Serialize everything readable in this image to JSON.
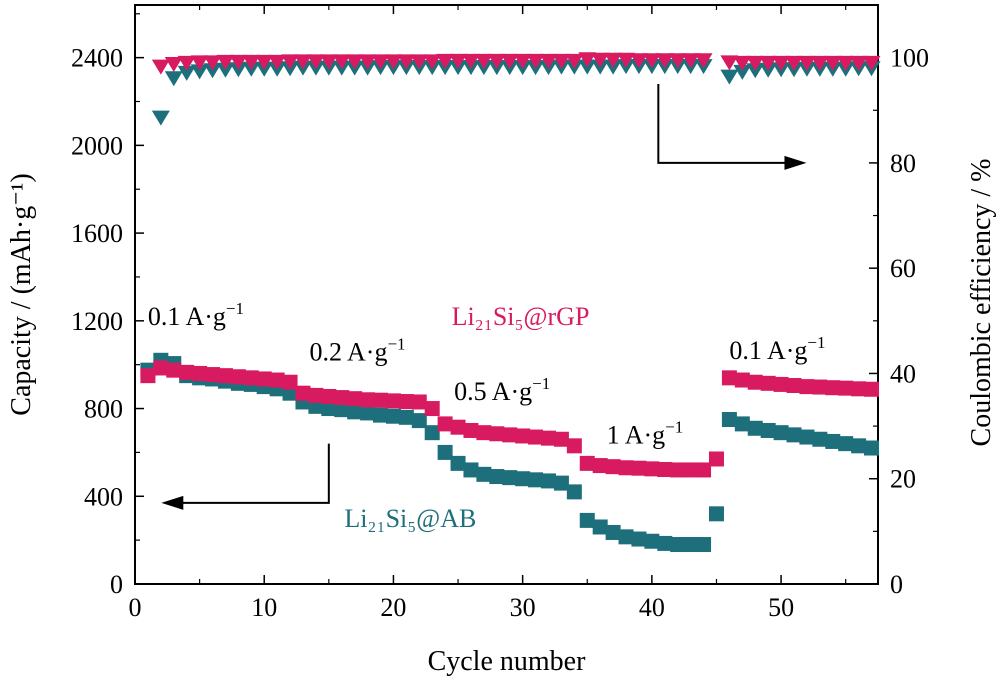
{
  "chart_data": {
    "type": "scatter",
    "xlabel": "Cycle number",
    "ylabel_left": "Capacity / (mAh·g⁻¹)",
    "ylabel_right": "Coulombic efficiency / %",
    "xlim": [
      0,
      57.5
    ],
    "ylim_left": [
      0,
      2640
    ],
    "ylim_right": [
      0,
      110
    ],
    "xticks": [
      0,
      10,
      20,
      30,
      40,
      50
    ],
    "yticks_left": [
      0,
      400,
      800,
      1200,
      1600,
      2000,
      2400
    ],
    "yticks_right": [
      0,
      20,
      40,
      60,
      80,
      100
    ],
    "annotations": [
      {
        "text": "0.1 A·g",
        "sup": "−1",
        "x": 1,
        "y": 1180
      },
      {
        "text": "0.2 A·g",
        "sup": "−1",
        "x": 13.5,
        "y": 1020
      },
      {
        "text": "0.5 A·g",
        "sup": "−1",
        "x": 24.7,
        "y": 840
      },
      {
        "text": "1 A·g",
        "sup": "−1",
        "x": 36.5,
        "y": 640
      },
      {
        "text": "0.1 A·g",
        "sup": "−1",
        "x": 46,
        "y": 1025
      }
    ],
    "series_labels": [
      {
        "text": "Li₂₁Si₅@rGP",
        "color": "#d81b60",
        "x": 24.5,
        "y": 1180
      },
      {
        "text": "Li₂₁Si₅@AB",
        "color": "#1e6f7c",
        "x": 16.2,
        "y": 260
      }
    ],
    "series": [
      {
        "name": "Li21Si5@rGP",
        "axis": "left",
        "marker": "square",
        "color": "#d81b60",
        "x": [
          1,
          2,
          3,
          4,
          5,
          6,
          7,
          8,
          9,
          10,
          11,
          12,
          13,
          14,
          15,
          16,
          17,
          18,
          19,
          20,
          21,
          22,
          23,
          24,
          25,
          26,
          27,
          28,
          29,
          30,
          31,
          32,
          33,
          34,
          35,
          36,
          37,
          38,
          39,
          40,
          41,
          42,
          43,
          44,
          45,
          46,
          47,
          48,
          49,
          50,
          51,
          52,
          53,
          54,
          55,
          56,
          57
        ],
        "y": [
          950,
          985,
          975,
          965,
          960,
          955,
          950,
          945,
          940,
          935,
          930,
          920,
          870,
          860,
          855,
          850,
          845,
          840,
          838,
          835,
          832,
          830,
          800,
          730,
          715,
          700,
          690,
          685,
          680,
          675,
          670,
          665,
          660,
          630,
          550,
          540,
          535,
          530,
          528,
          525,
          522,
          520,
          520,
          520,
          570,
          940,
          930,
          920,
          915,
          910,
          905,
          900,
          898,
          895,
          893,
          890,
          888
        ]
      },
      {
        "name": "Li21Si5@AB",
        "axis": "left",
        "marker": "square",
        "color": "#1e6f7c",
        "x": [
          1,
          2,
          3,
          4,
          5,
          6,
          7,
          8,
          9,
          10,
          11,
          12,
          13,
          14,
          15,
          16,
          17,
          18,
          19,
          20,
          21,
          22,
          23,
          24,
          25,
          26,
          27,
          28,
          29,
          30,
          31,
          32,
          33,
          34,
          35,
          36,
          37,
          38,
          39,
          40,
          41,
          42,
          43,
          44,
          45,
          46,
          47,
          48,
          49,
          50,
          51,
          52,
          53,
          54,
          55,
          56,
          57
        ],
        "y": [
          975,
          1020,
          1005,
          950,
          940,
          935,
          925,
          915,
          910,
          900,
          890,
          870,
          830,
          810,
          800,
          795,
          785,
          780,
          770,
          765,
          760,
          745,
          690,
          600,
          550,
          520,
          500,
          490,
          485,
          480,
          475,
          470,
          460,
          420,
          290,
          260,
          235,
          215,
          205,
          195,
          185,
          180,
          180,
          180,
          320,
          750,
          730,
          710,
          700,
          690,
          680,
          670,
          660,
          650,
          640,
          630,
          620
        ]
      },
      {
        "name": "Li21Si5@rGP CE",
        "axis": "right",
        "marker": "triangle-down",
        "color": "#d81b60",
        "x": [
          2,
          3,
          4,
          5,
          6,
          7,
          8,
          9,
          10,
          11,
          12,
          13,
          14,
          15,
          16,
          17,
          18,
          19,
          20,
          21,
          22,
          23,
          24,
          25,
          26,
          27,
          28,
          29,
          30,
          31,
          32,
          33,
          34,
          35,
          36,
          37,
          38,
          39,
          40,
          41,
          42,
          43,
          44,
          46,
          47,
          48,
          49,
          50,
          51,
          52,
          53,
          54,
          55,
          56,
          57
        ],
        "y": [
          98.2,
          98.7,
          98.9,
          99.0,
          99.0,
          99.1,
          99.1,
          99.1,
          99.1,
          99.1,
          99.2,
          99.2,
          99.2,
          99.2,
          99.2,
          99.2,
          99.2,
          99.2,
          99.2,
          99.2,
          99.2,
          99.2,
          99.3,
          99.3,
          99.3,
          99.3,
          99.3,
          99.3,
          99.3,
          99.3,
          99.3,
          99.3,
          99.3,
          99.6,
          99.5,
          99.5,
          99.5,
          99.4,
          99.4,
          99.4,
          99.4,
          99.4,
          99.4,
          99.0,
          98.9,
          98.9,
          98.9,
          98.9,
          98.9,
          98.9,
          98.9,
          98.9,
          98.9,
          98.9,
          98.9
        ]
      },
      {
        "name": "Li21Si5@AB CE",
        "axis": "right",
        "marker": "triangle-down",
        "color": "#1e6f7c",
        "x": [
          2,
          3,
          4,
          5,
          6,
          7,
          8,
          9,
          10,
          11,
          12,
          13,
          14,
          15,
          16,
          17,
          18,
          19,
          20,
          21,
          22,
          23,
          24,
          25,
          26,
          27,
          28,
          29,
          30,
          31,
          32,
          33,
          34,
          35,
          36,
          37,
          38,
          39,
          40,
          41,
          42,
          43,
          44,
          46,
          47,
          48,
          49,
          50,
          51,
          52,
          53,
          54,
          55,
          56,
          57
        ],
        "y": [
          88.5,
          96.0,
          97.0,
          97.3,
          97.5,
          97.6,
          97.7,
          97.8,
          97.8,
          97.8,
          97.9,
          98.0,
          98.0,
          98.0,
          98.0,
          98.0,
          98.0,
          98.1,
          98.1,
          98.1,
          98.1,
          98.1,
          98.1,
          98.1,
          98.1,
          98.1,
          98.1,
          98.1,
          98.1,
          98.1,
          98.1,
          98.2,
          98.2,
          98.2,
          98.2,
          98.2,
          98.3,
          98.3,
          98.3,
          98.3,
          98.3,
          98.3,
          98.3,
          96.3,
          97.2,
          97.5,
          97.6,
          97.7,
          97.7,
          97.8,
          97.8,
          97.8,
          97.8,
          97.9,
          97.9
        ]
      }
    ],
    "arrows": [
      {
        "name": "arrow-left-axis",
        "direction": "left",
        "from": [
          15,
          370
        ],
        "to": [
          2.5,
          370
        ],
        "stem_top": 640
      },
      {
        "name": "arrow-right-axis",
        "direction": "right",
        "from": [
          40.5,
          80
        ],
        "to": [
          51.5,
          80
        ],
        "stem_top": 95
      }
    ]
  }
}
